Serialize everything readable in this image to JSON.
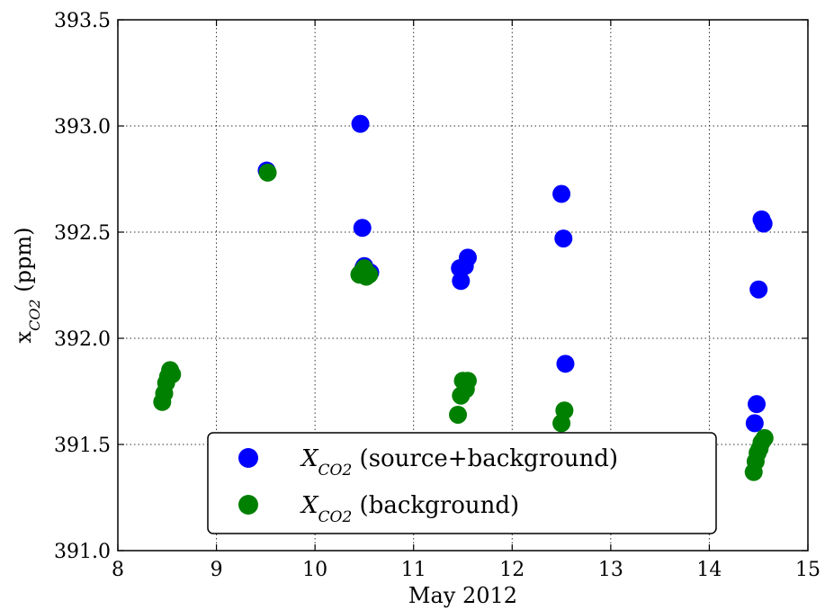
{
  "chart_data": {
    "type": "scatter",
    "title": "",
    "xlabel": "May 2012",
    "ylabel": {
      "main": "x",
      "sub": "CO2",
      "unit": " (ppm)"
    },
    "xlim": [
      8,
      15
    ],
    "ylim": [
      391.0,
      393.5
    ],
    "x_ticks": [
      8,
      9,
      10,
      11,
      12,
      13,
      14,
      15
    ],
    "y_ticks": [
      391.0,
      391.5,
      392.0,
      392.5,
      393.0,
      393.5
    ],
    "y_tick_labels": [
      "391.0",
      "391.5",
      "392.0",
      "392.5",
      "393.0",
      "393.5"
    ],
    "grid": true,
    "legend_placement": "lower-center",
    "series": [
      {
        "name": {
          "main": "X",
          "sub": "CO2",
          "rest": " (source+background)"
        },
        "color": "#0000ff",
        "points": [
          [
            9.51,
            392.79
          ],
          [
            10.46,
            393.01
          ],
          [
            10.48,
            392.52
          ],
          [
            10.49,
            392.33
          ],
          [
            10.5,
            392.34
          ],
          [
            10.53,
            392.31
          ],
          [
            10.56,
            392.31
          ],
          [
            11.47,
            392.33
          ],
          [
            11.48,
            392.27
          ],
          [
            11.52,
            392.34
          ],
          [
            11.55,
            392.38
          ],
          [
            12.5,
            392.68
          ],
          [
            12.52,
            392.47
          ],
          [
            12.54,
            391.88
          ],
          [
            14.46,
            391.6
          ],
          [
            14.48,
            391.69
          ],
          [
            14.5,
            392.23
          ],
          [
            14.53,
            392.56
          ],
          [
            14.55,
            392.54
          ]
        ]
      },
      {
        "name": {
          "main": "X",
          "sub": "CO2",
          "rest": " (background)"
        },
        "color": "#008000",
        "points": [
          [
            8.45,
            391.7
          ],
          [
            8.47,
            391.74
          ],
          [
            8.49,
            391.79
          ],
          [
            8.51,
            391.82
          ],
          [
            8.53,
            391.85
          ],
          [
            8.55,
            391.83
          ],
          [
            9.52,
            392.78
          ],
          [
            10.45,
            392.3
          ],
          [
            10.47,
            392.31
          ],
          [
            10.5,
            392.33
          ],
          [
            10.52,
            392.29
          ],
          [
            10.55,
            392.3
          ],
          [
            11.45,
            391.64
          ],
          [
            11.48,
            391.73
          ],
          [
            11.5,
            391.8
          ],
          [
            11.53,
            391.76
          ],
          [
            11.55,
            391.8
          ],
          [
            12.5,
            391.6
          ],
          [
            12.53,
            391.66
          ],
          [
            14.45,
            391.37
          ],
          [
            14.47,
            391.42
          ],
          [
            14.49,
            391.46
          ],
          [
            14.51,
            391.48
          ],
          [
            14.53,
            391.51
          ],
          [
            14.56,
            391.53
          ]
        ]
      }
    ]
  }
}
